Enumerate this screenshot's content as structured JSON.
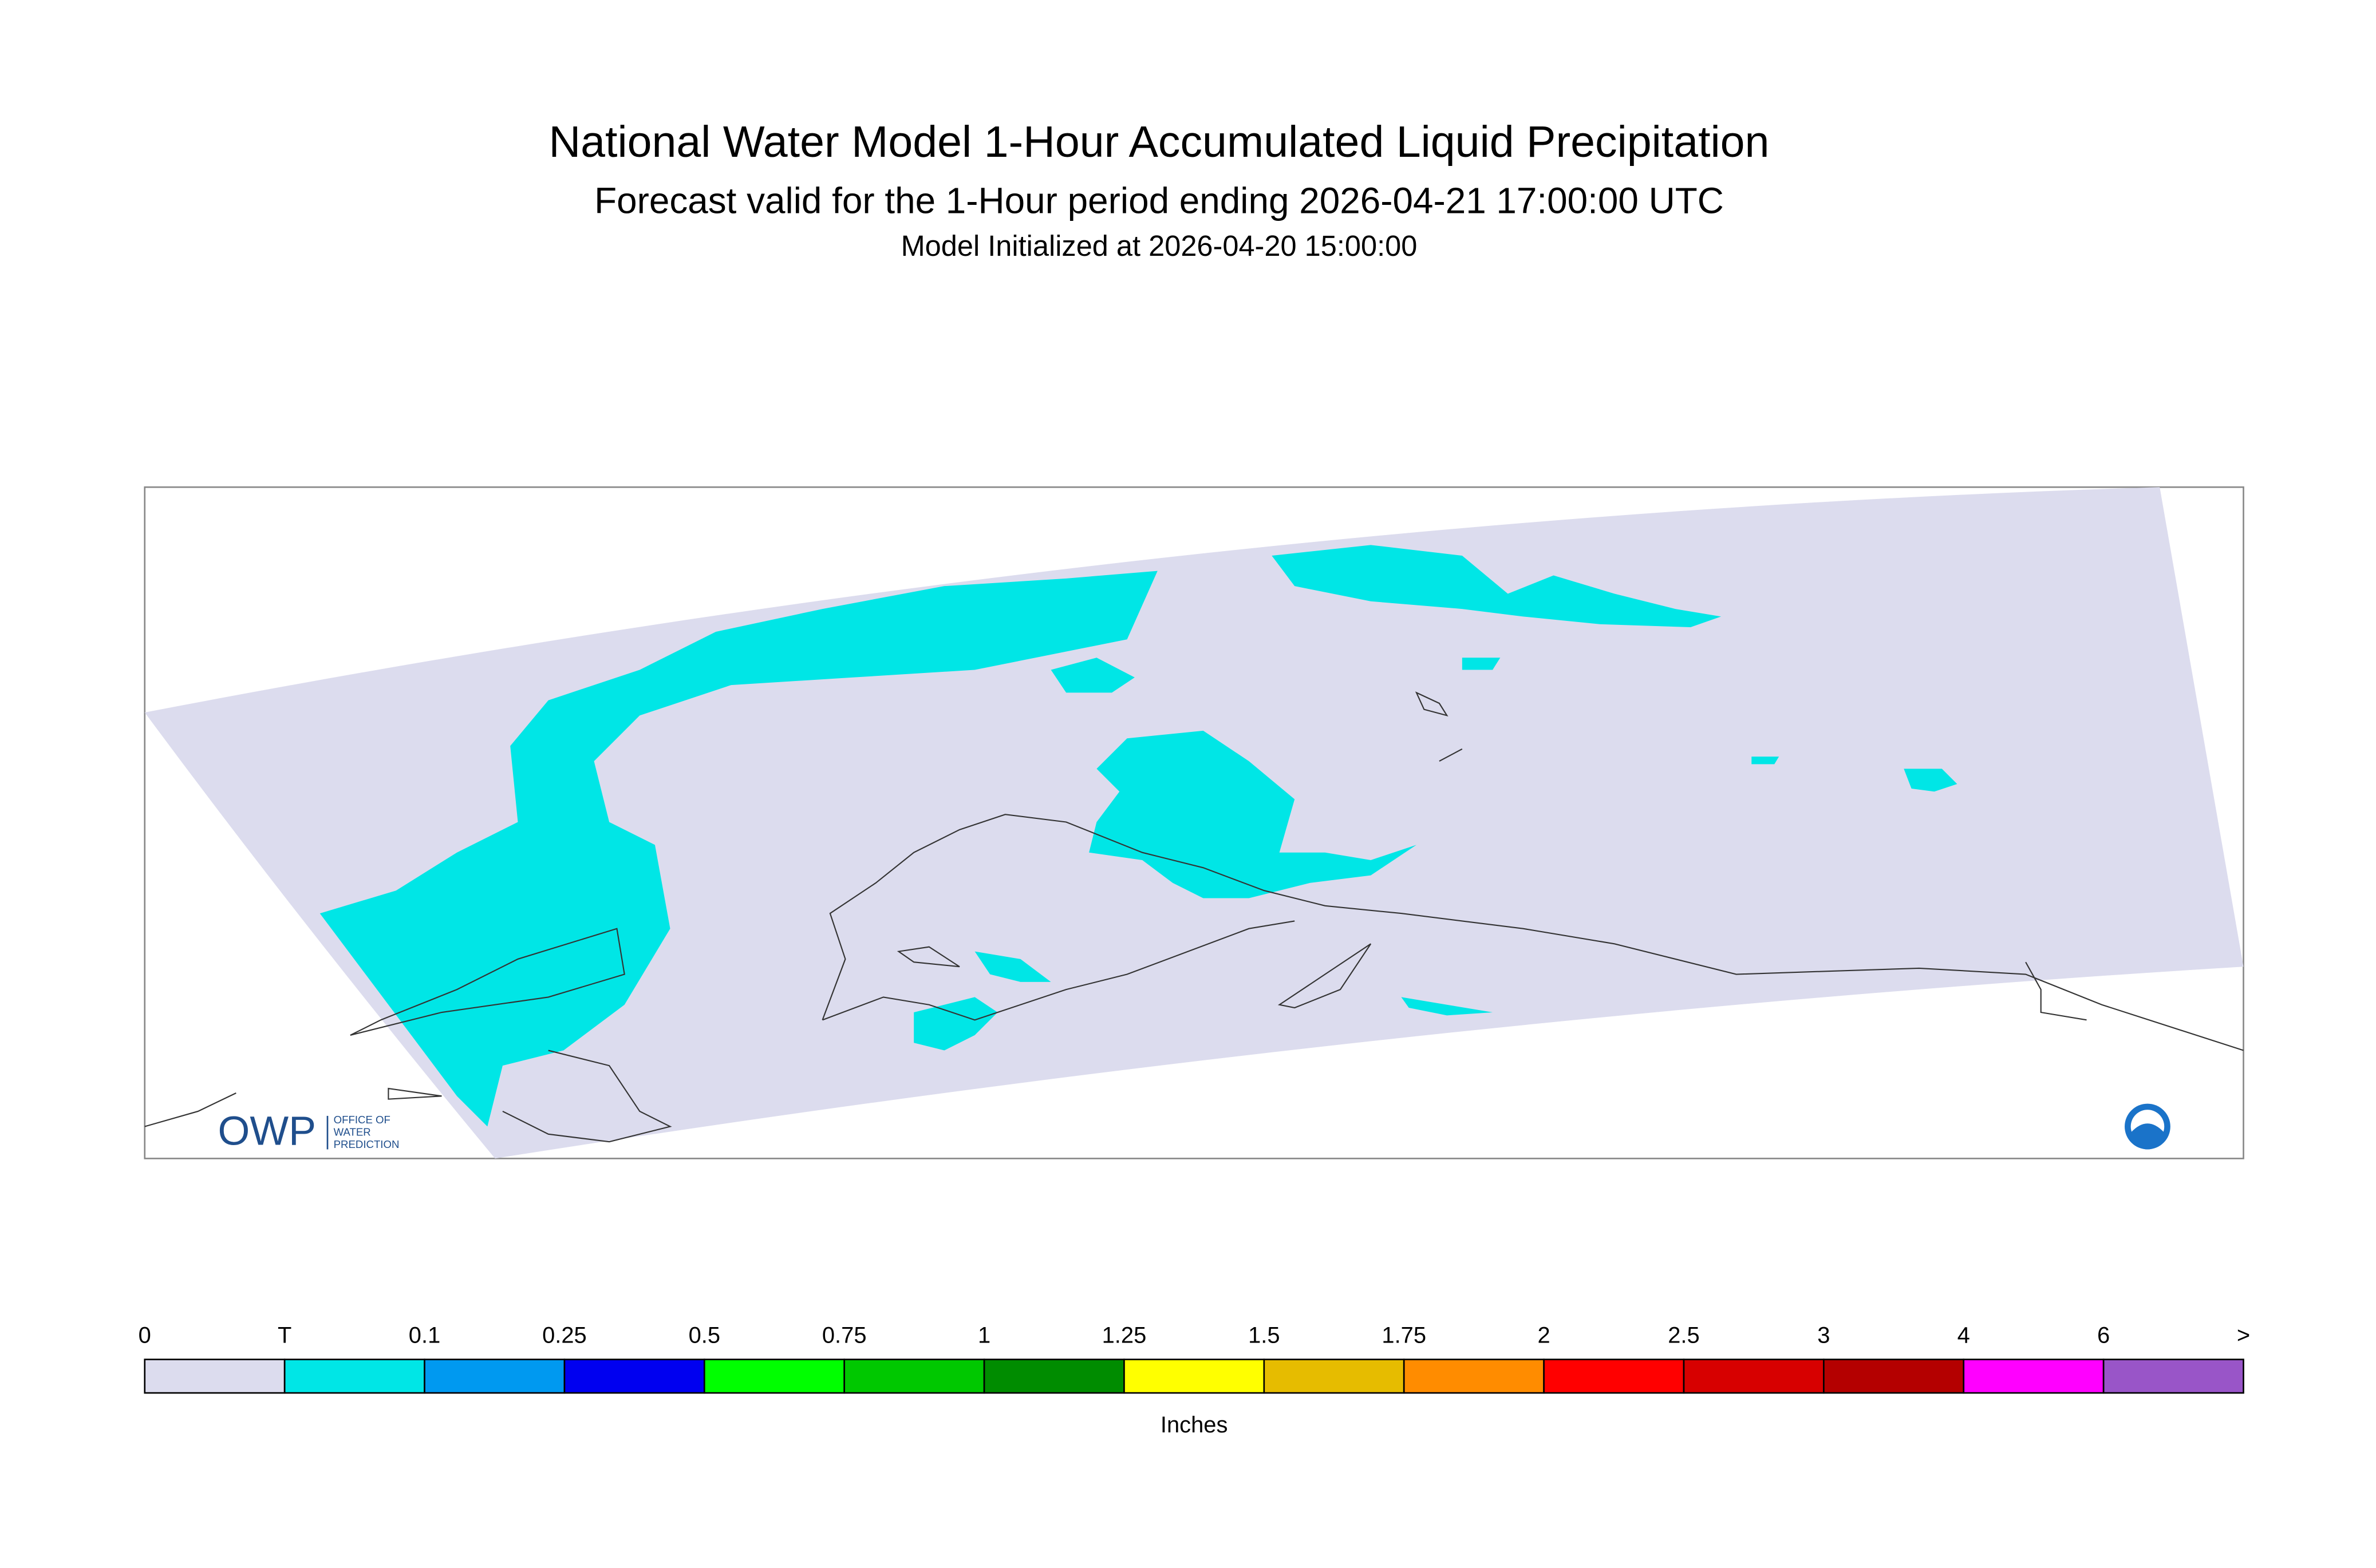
{
  "header": {
    "title": "National Water Model 1-Hour Accumulated Liquid Precipitation",
    "subtitle": "Forecast valid for the 1-Hour period ending 2026-04-21 17:00:00 UTC",
    "init": "Model Initialized at 2026-04-20 15:00:00"
  },
  "logo": {
    "mark": "OWP",
    "line1": "OFFICE OF",
    "line2": "WATER",
    "line3": "PREDICTION"
  },
  "legend": {
    "labels": [
      "0",
      "T",
      "0.1",
      "0.25",
      "0.5",
      "0.75",
      "1",
      "1.25",
      "1.5",
      "1.75",
      "2",
      "2.5",
      "3",
      "4",
      "6",
      ">"
    ],
    "colors": [
      "#dcdcee",
      "#00e6e6",
      "#0099f0",
      "#0000f0",
      "#00ff00",
      "#00c800",
      "#008c00",
      "#ffff00",
      "#e6bc00",
      "#ff8c00",
      "#ff0000",
      "#d70000",
      "#b40000",
      "#ff00ff",
      "#9955c8"
    ],
    "units": "Inches"
  }
}
